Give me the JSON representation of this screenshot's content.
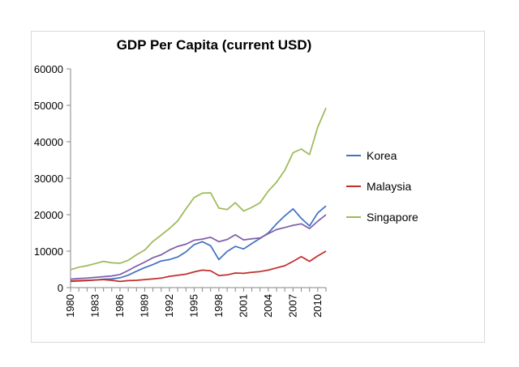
{
  "chart_data": {
    "type": "line",
    "title": "GDP Per Capita (current USD)",
    "xlabel": "",
    "ylabel": "",
    "ylim": [
      0,
      60000
    ],
    "yticks": [
      0,
      10000,
      20000,
      30000,
      40000,
      50000,
      60000
    ],
    "xlim": [
      1980,
      2011
    ],
    "xticks": [
      1980,
      1983,
      1986,
      1989,
      1992,
      1995,
      1998,
      2001,
      2004,
      2007,
      2010
    ],
    "grid": false,
    "legend_position": "right",
    "x": [
      1980,
      1981,
      1982,
      1983,
      1984,
      1985,
      1986,
      1987,
      1988,
      1989,
      1990,
      1991,
      1992,
      1993,
      1994,
      1995,
      1996,
      1997,
      1998,
      1999,
      2000,
      2001,
      2002,
      2003,
      2004,
      2005,
      2006,
      2007,
      2008,
      2009,
      2010,
      2011
    ],
    "series": [
      {
        "name": "Korea",
        "color": "#4472c4",
        "legend": true,
        "values": [
          1700,
          1800,
          1900,
          2100,
          2300,
          2400,
          2700,
          3400,
          4500,
          5500,
          6300,
          7300,
          7700,
          8400,
          9800,
          11800,
          12600,
          11500,
          7700,
          9900,
          11300,
          10600,
          12100,
          13500,
          15000,
          17500,
          19700,
          21600,
          19000,
          16900,
          20500,
          22400
        ]
      },
      {
        "name": "Malaysia",
        "color": "#c0302c",
        "legend": true,
        "values": [
          1800,
          1900,
          2000,
          2100,
          2200,
          2000,
          1700,
          1900,
          2000,
          2200,
          2400,
          2600,
          3100,
          3400,
          3700,
          4300,
          4800,
          4600,
          3300,
          3500,
          4000,
          3900,
          4200,
          4400,
          4800,
          5400,
          6000,
          7200,
          8500,
          7200,
          8700,
          10000
        ]
      },
      {
        "name": "Singapore",
        "color": "#9bbb59",
        "legend": true,
        "values": [
          4900,
          5600,
          6000,
          6600,
          7200,
          6800,
          6700,
          7500,
          9000,
          10300,
          12700,
          14400,
          16200,
          18300,
          21600,
          24700,
          25900,
          26000,
          21800,
          21400,
          23300,
          21000,
          22000,
          23300,
          26500,
          28900,
          32200,
          37000,
          38000,
          36500,
          44000,
          49300
        ]
      },
      {
        "name": "",
        "color": "#7f5fa8",
        "legend": false,
        "values": [
          2300,
          2500,
          2600,
          2800,
          3000,
          3200,
          3600,
          4700,
          5900,
          7000,
          8200,
          9000,
          10300,
          11300,
          11900,
          13000,
          13300,
          13800,
          12600,
          13200,
          14500,
          13100,
          13400,
          13600,
          14800,
          15900,
          16500,
          17100,
          17500,
          16200,
          18200,
          20000
        ]
      }
    ]
  }
}
